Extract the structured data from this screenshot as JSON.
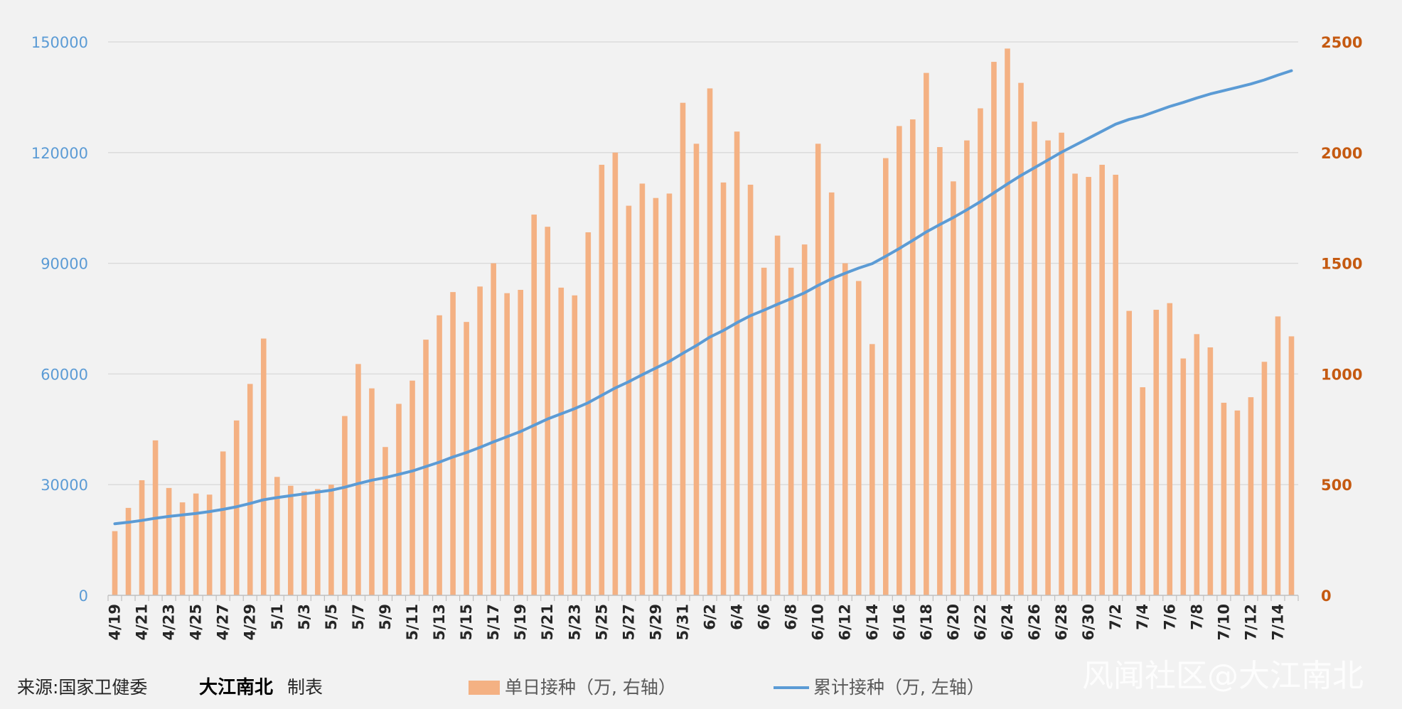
{
  "chart_data": {
    "type": "bar+line",
    "title": "",
    "colors": {
      "bar": "#f4b183",
      "line": "#5b9bd5",
      "left_axis": "#5b9bd5",
      "right_axis": "#c55a11",
      "grid": "#d9d9d9"
    },
    "left_axis": {
      "ylim": [
        0,
        150000
      ],
      "ticks": [
        "0",
        "30000",
        "60000",
        "90000",
        "120000",
        "150000"
      ]
    },
    "right_axis": {
      "ylim": [
        0,
        2500
      ],
      "ticks": [
        "0",
        "500",
        "1000",
        "1500",
        "2000",
        "2500"
      ]
    },
    "x": [
      "4/19",
      "4/20",
      "4/21",
      "4/22",
      "4/23",
      "4/24",
      "4/25",
      "4/26",
      "4/27",
      "4/28",
      "4/29",
      "4/30",
      "5/1",
      "5/2",
      "5/3",
      "5/4",
      "5/5",
      "5/6",
      "5/7",
      "5/8",
      "5/9",
      "5/10",
      "5/11",
      "5/12",
      "5/13",
      "5/14",
      "5/15",
      "5/16",
      "5/17",
      "5/18",
      "5/19",
      "5/20",
      "5/21",
      "5/22",
      "5/23",
      "5/24",
      "5/25",
      "5/26",
      "5/27",
      "5/28",
      "5/29",
      "5/30",
      "5/31",
      "6/1",
      "6/2",
      "6/3",
      "6/4",
      "6/5",
      "6/6",
      "6/7",
      "6/8",
      "6/9",
      "6/10",
      "6/11",
      "6/12",
      "6/13",
      "6/14",
      "6/15",
      "6/16",
      "6/17",
      "6/18",
      "6/19",
      "6/20",
      "6/21",
      "6/22",
      "6/23",
      "6/24",
      "6/25",
      "6/26",
      "6/27",
      "6/28",
      "6/29",
      "6/30",
      "7/1",
      "7/2",
      "7/3",
      "7/4",
      "7/5",
      "7/6",
      "7/7",
      "7/8",
      "7/9",
      "7/10",
      "7/11",
      "7/12",
      "7/13",
      "7/14",
      "7/15"
    ],
    "x_tick_labels": [
      "4/19",
      "4/21",
      "4/23",
      "4/25",
      "4/27",
      "4/29",
      "5/1",
      "5/3",
      "5/5",
      "5/7",
      "5/9",
      "5/11",
      "5/13",
      "5/15",
      "5/17",
      "5/19",
      "5/21",
      "5/23",
      "5/25",
      "5/27",
      "5/29",
      "5/31",
      "6/2",
      "6/4",
      "6/6",
      "6/8",
      "6/10",
      "6/12",
      "6/14",
      "6/16",
      "6/18",
      "6/20",
      "6/22",
      "6/24",
      "6/26",
      "6/28",
      "6/30",
      "7/2",
      "7/4",
      "7/6",
      "7/8",
      "7/10",
      "7/12",
      "7/14"
    ],
    "series": [
      {
        "name": "单日接种（万, 右轴）",
        "type": "bar",
        "axis": "right",
        "values": [
          290,
          395,
          520,
          700,
          485,
          420,
          460,
          455,
          650,
          790,
          955,
          1160,
          535,
          495,
          470,
          480,
          500,
          810,
          1045,
          935,
          670,
          865,
          970,
          1155,
          1265,
          1370,
          1235,
          1395,
          1500,
          1365,
          1380,
          1720,
          1665,
          1390,
          1355,
          1640,
          1945,
          2000,
          1760,
          1860,
          1795,
          1815,
          2225,
          2040,
          2290,
          1865,
          2095,
          1855,
          1480,
          1625,
          1480,
          1585,
          2040,
          1820,
          1500,
          1420,
          1135,
          1975,
          2120,
          2150,
          2360,
          2025,
          1870,
          2055,
          2200,
          2410,
          2470,
          2315,
          2140,
          2055,
          2090,
          1905,
          1890,
          1945,
          1900,
          1285,
          940,
          1290,
          1320,
          1070,
          1180,
          1120,
          870,
          835,
          895,
          1055,
          1260,
          1170
        ]
      },
      {
        "name": "累计接种（万, 左轴）",
        "type": "line",
        "axis": "left",
        "values": [
          19400,
          19800,
          20300,
          20900,
          21400,
          21800,
          22200,
          22700,
          23300,
          24000,
          24900,
          25900,
          26500,
          27000,
          27500,
          28000,
          28500,
          29300,
          30300,
          31200,
          31900,
          32800,
          33700,
          34900,
          36100,
          37500,
          38700,
          40100,
          41600,
          43000,
          44400,
          46100,
          47800,
          49200,
          50600,
          52200,
          54200,
          56200,
          57900,
          59800,
          61600,
          63400,
          65600,
          67700,
          70000,
          71800,
          73900,
          75800,
          77300,
          78900,
          80400,
          82000,
          84000,
          85800,
          87300,
          88700,
          89900,
          91900,
          94000,
          96200,
          98500,
          100500,
          102400,
          104500,
          106700,
          109100,
          111500,
          113800,
          115900,
          118000,
          120100,
          122000,
          123900,
          125800,
          127700,
          129000,
          129900,
          131200,
          132500,
          133600,
          134800,
          135900,
          136800,
          137700,
          138600,
          139700,
          141000,
          142200
        ]
      }
    ]
  },
  "footer": {
    "source_label": "来源:国家卫健委",
    "author": "大江南北",
    "made_by": "制表",
    "legend_bar": "单日接种（万, 右轴）",
    "legend_line": "累计接种（万, 左轴）",
    "watermark": "风闻社区@大江南北"
  }
}
